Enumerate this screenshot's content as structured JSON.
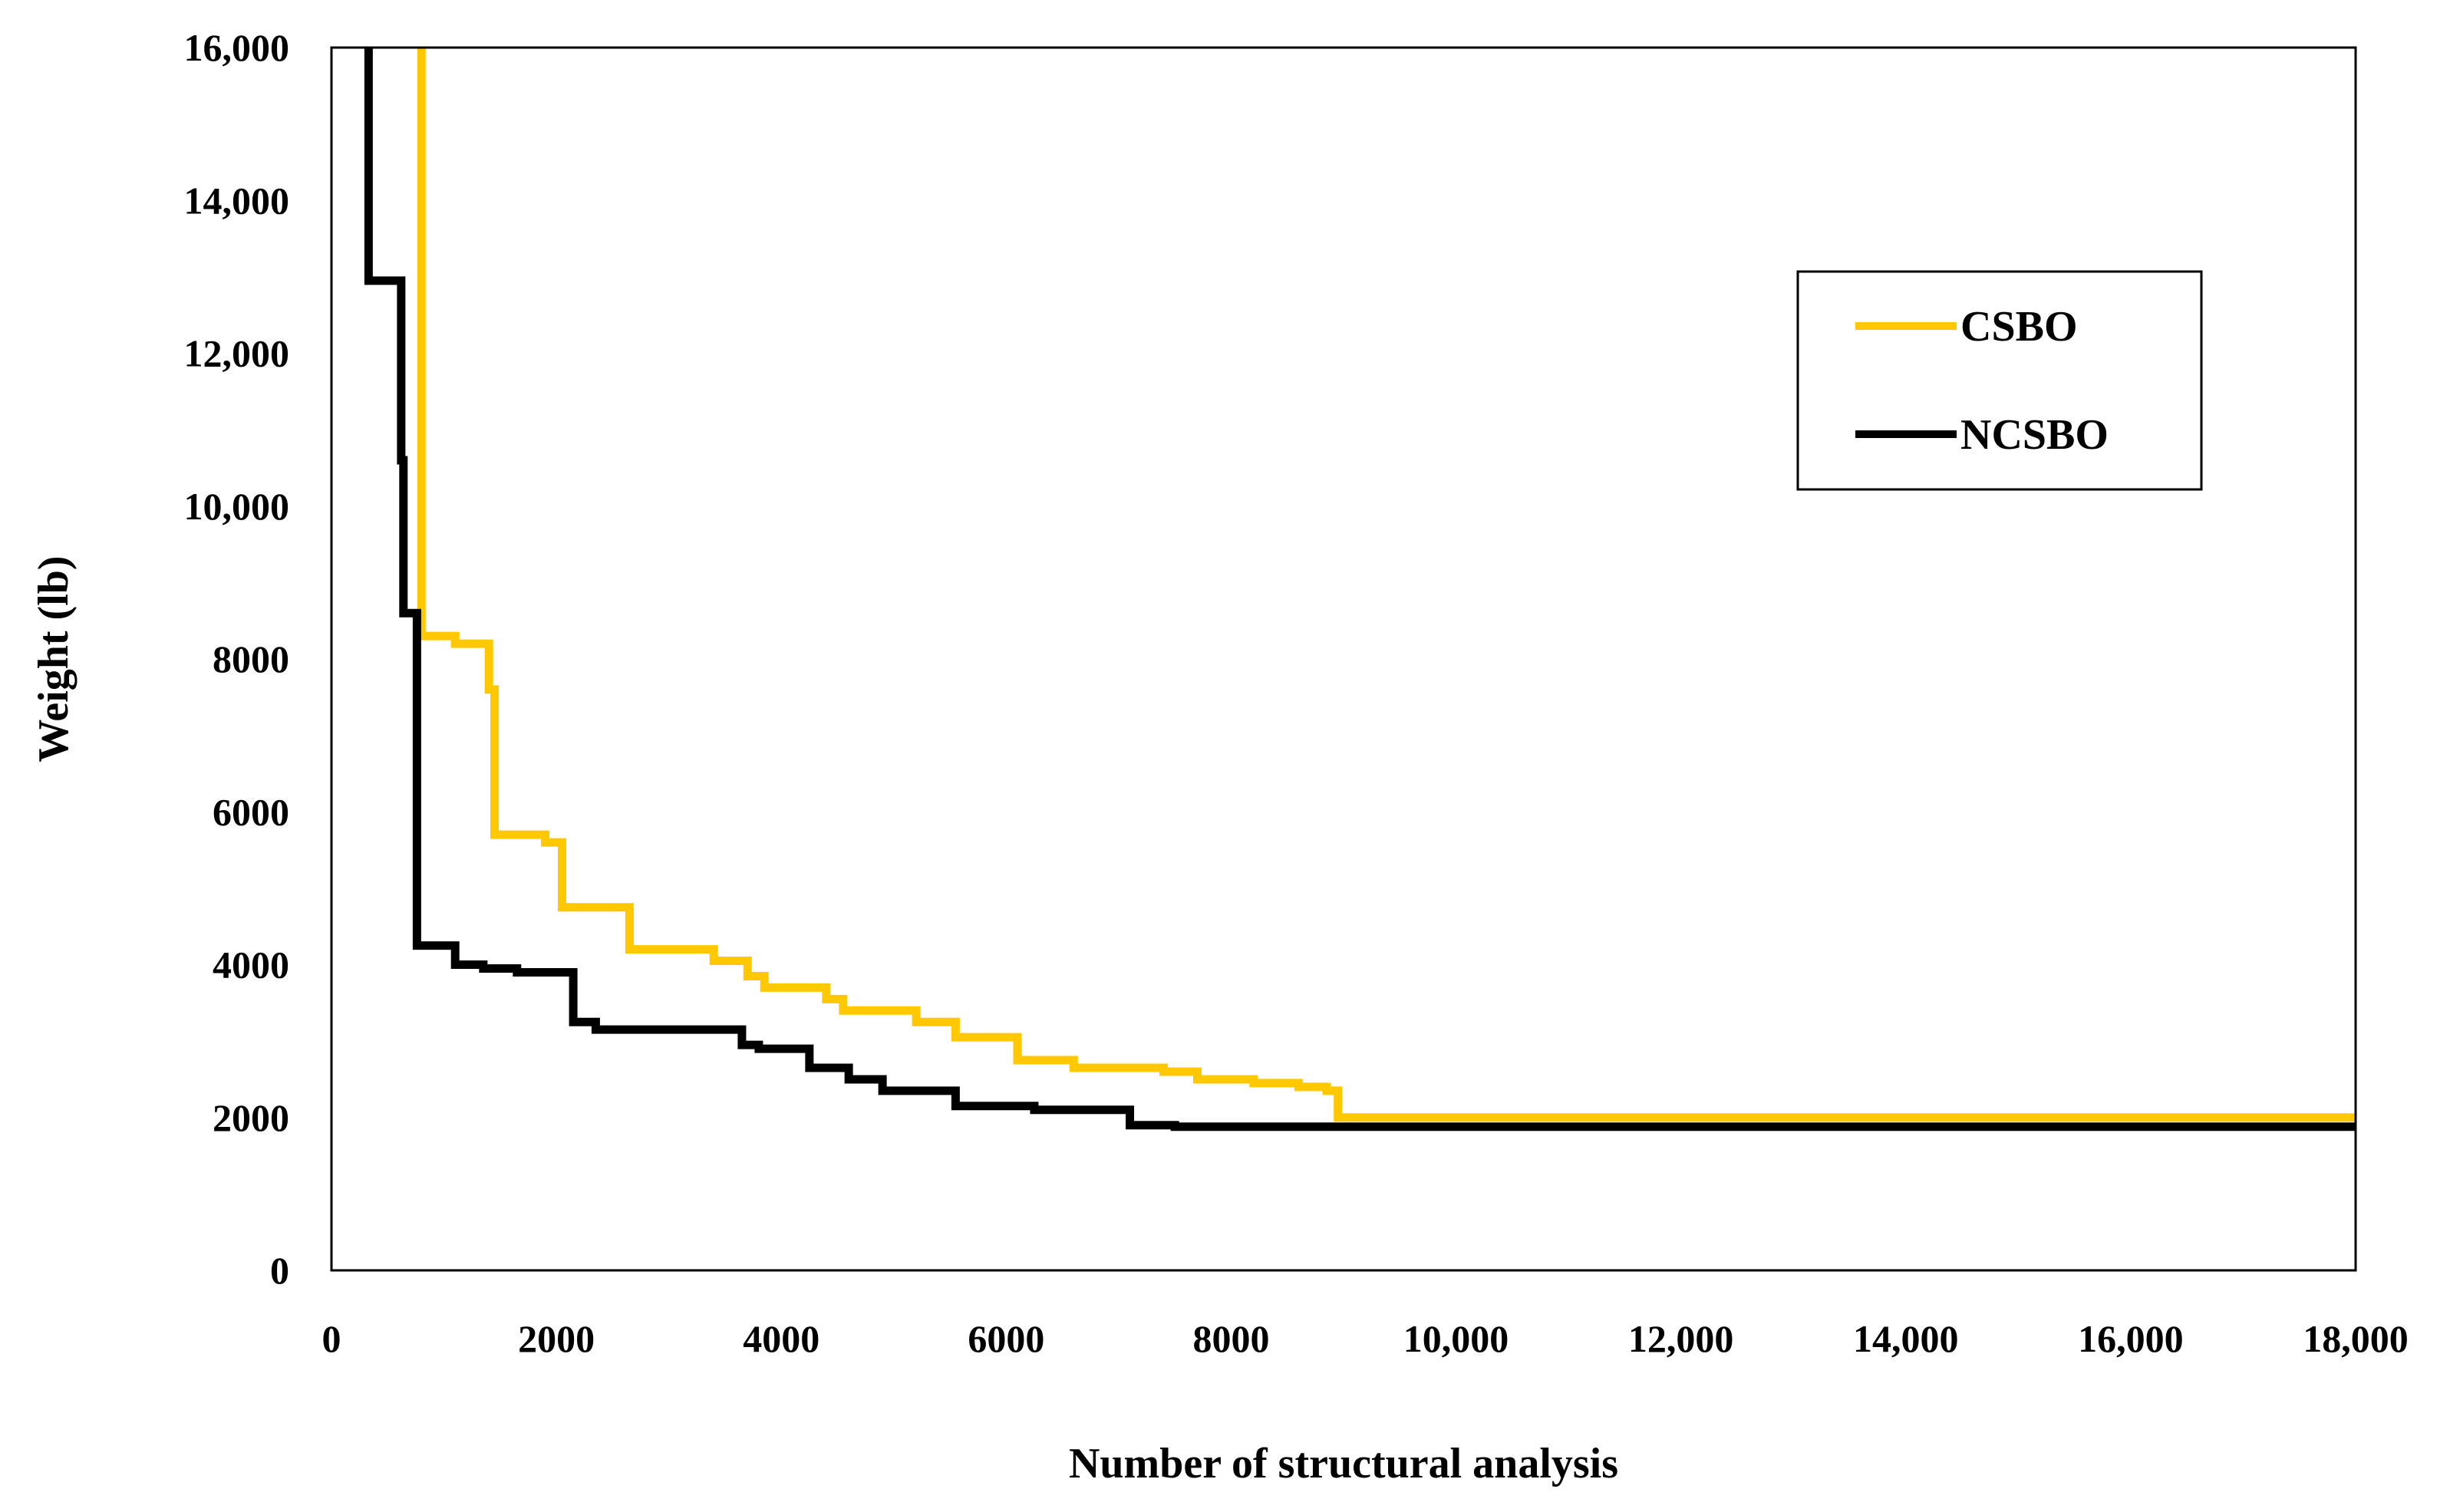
{
  "chart_data": {
    "type": "line",
    "title": "",
    "xlabel": "Number of structural analysis",
    "ylabel": "Weight  (lb)",
    "xlim": [
      0,
      18000
    ],
    "ylim": [
      0,
      16000
    ],
    "x_ticks": [
      0,
      2000,
      4000,
      6000,
      8000,
      10000,
      12000,
      14000,
      16000,
      18000
    ],
    "x_tick_labels": [
      "0",
      "2000",
      "4000",
      "6000",
      "8000",
      "10,000",
      "12,000",
      "14,000",
      "16,000",
      "18,000"
    ],
    "y_ticks": [
      0,
      2000,
      4000,
      6000,
      8000,
      10000,
      12000,
      14000,
      16000
    ],
    "y_tick_labels": [
      "0",
      "2000",
      "4000",
      "6000",
      "8000",
      "10,000",
      "12,000",
      "14,000",
      "16,000"
    ],
    "grid": false,
    "legend": {
      "position": "top-right",
      "entries": [
        "CSBO",
        "NCSBO"
      ]
    },
    "series": [
      {
        "name": "CSBO",
        "color": "#FFC800",
        "step": true,
        "points": [
          [
            800,
            16000
          ],
          [
            800,
            8300
          ],
          [
            1100,
            8200
          ],
          [
            1400,
            7600
          ],
          [
            1450,
            5700
          ],
          [
            1900,
            5600
          ],
          [
            2050,
            4750
          ],
          [
            2650,
            4200
          ],
          [
            3400,
            4050
          ],
          [
            3700,
            3850
          ],
          [
            3850,
            3700
          ],
          [
            4400,
            3550
          ],
          [
            4550,
            3400
          ],
          [
            5200,
            3250
          ],
          [
            5550,
            3050
          ],
          [
            6100,
            2750
          ],
          [
            6600,
            2650
          ],
          [
            7400,
            2600
          ],
          [
            7700,
            2500
          ],
          [
            8200,
            2450
          ],
          [
            8600,
            2400
          ],
          [
            8850,
            2350
          ],
          [
            8950,
            2000
          ],
          [
            18000,
            2000
          ]
        ]
      },
      {
        "name": "NCSBO",
        "color": "#000000",
        "step": true,
        "points": [
          [
            330,
            16000
          ],
          [
            330,
            12950
          ],
          [
            580,
            12950
          ],
          [
            620,
            10600
          ],
          [
            640,
            8600
          ],
          [
            760,
            4250
          ],
          [
            1100,
            4000
          ],
          [
            1350,
            3950
          ],
          [
            1650,
            3900
          ],
          [
            2150,
            3250
          ],
          [
            2350,
            3150
          ],
          [
            3650,
            2950
          ],
          [
            3800,
            2900
          ],
          [
            4250,
            2650
          ],
          [
            4600,
            2500
          ],
          [
            4900,
            2350
          ],
          [
            5550,
            2150
          ],
          [
            6250,
            2100
          ],
          [
            7100,
            1900
          ],
          [
            7500,
            1880
          ],
          [
            18000,
            1880
          ]
        ]
      }
    ]
  }
}
